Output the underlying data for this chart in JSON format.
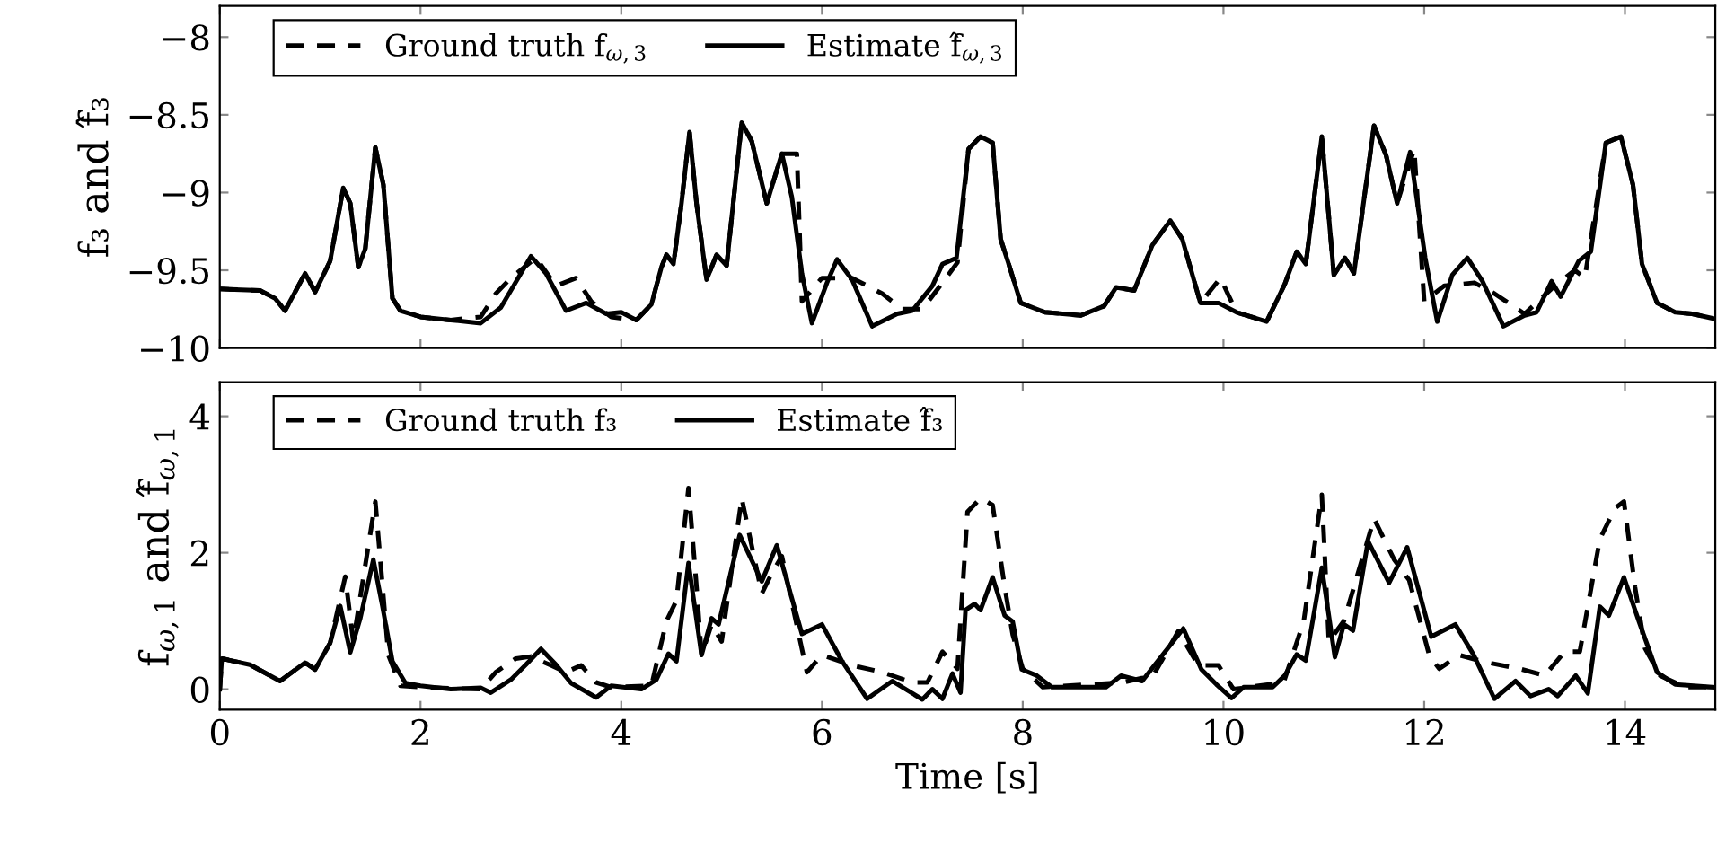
{
  "chart_data": [
    {
      "type": "line",
      "ylabel": "f₃ and f̂₃",
      "legend": "top left",
      "tick_labels": "y",
      "xlim": [
        0,
        14.9
      ],
      "ylim": [
        -10,
        -7.8
      ],
      "xticks": [
        {
          "value": 0,
          "label": null
        },
        {
          "value": 2,
          "label": null
        },
        {
          "value": 4,
          "label": null
        },
        {
          "value": 6,
          "label": null
        },
        {
          "value": 8,
          "label": null
        },
        {
          "value": 10,
          "label": null
        },
        {
          "value": 12,
          "label": null
        },
        {
          "value": 14,
          "label": null
        }
      ],
      "yticks": [
        {
          "value": -10,
          "label": "−10"
        },
        {
          "value": -9.5,
          "label": "−9.5"
        },
        {
          "value": -9,
          "label": "−9"
        },
        {
          "value": -8.5,
          "label": "−8.5"
        },
        {
          "value": -8,
          "label": "−8"
        }
      ],
      "series": [
        {
          "name": "Ground truth f$_{ω,3}$",
          "color": "#000000",
          "line_style": "dashed",
          "x": [
            0,
            0.4,
            0.55,
            0.65,
            0.85,
            0.95,
            1.1,
            1.23,
            1.3,
            1.38,
            1.45,
            1.55,
            1.63,
            1.72,
            1.8,
            2.0,
            2.3,
            2.6,
            2.75,
            2.9,
            3.15,
            3.35,
            3.55,
            3.7,
            3.9,
            4.15,
            4.3,
            4.4,
            4.45,
            4.52,
            4.6,
            4.68,
            4.75,
            4.85,
            4.95,
            5.05,
            5.2,
            5.3,
            5.45,
            5.6,
            5.75,
            5.8,
            6.0,
            6.3,
            6.6,
            6.8,
            7.0,
            7.2,
            7.35,
            7.46,
            7.58,
            7.7,
            7.78,
            7.86,
            7.98,
            8.22,
            8.58,
            8.81,
            8.93,
            9.11,
            9.29,
            9.47,
            9.59,
            9.77,
            9.97,
            10.13,
            10.43,
            10.61,
            10.73,
            10.82,
            10.98,
            11.1,
            11.21,
            11.3,
            11.5,
            11.62,
            11.73,
            11.9,
            12.0,
            12.2,
            12.5,
            12.7,
            13.0,
            13.3,
            13.5,
            13.6,
            13.81,
            13.96,
            14.08,
            14.17,
            14.32,
            14.5,
            14.67,
            14.88
          ],
          "values": [
            -9.62,
            -9.63,
            -9.68,
            -9.76,
            -9.52,
            -9.64,
            -9.44,
            -8.97,
            -9.07,
            -9.48,
            -9.36,
            -8.71,
            -8.95,
            -9.68,
            -9.76,
            -9.8,
            -9.82,
            -9.8,
            -9.65,
            -9.55,
            -9.42,
            -9.6,
            -9.55,
            -9.7,
            -9.8,
            -9.82,
            -9.72,
            -9.48,
            -9.4,
            -9.46,
            -9.07,
            -8.61,
            -9.07,
            -9.56,
            -9.4,
            -9.47,
            -8.55,
            -8.67,
            -9.07,
            -8.75,
            -8.75,
            -9.7,
            -9.55,
            -9.55,
            -9.65,
            -9.75,
            -9.75,
            -9.58,
            -9.45,
            -8.72,
            -8.64,
            -8.68,
            -9.3,
            -9.46,
            -9.71,
            -9.77,
            -9.79,
            -9.73,
            -9.61,
            -9.63,
            -9.34,
            -9.18,
            -9.3,
            -9.71,
            -9.55,
            -9.77,
            -9.83,
            -9.59,
            -9.38,
            -9.46,
            -8.64,
            -9.53,
            -9.42,
            -9.52,
            -8.57,
            -8.76,
            -9.07,
            -8.72,
            -9.7,
            -9.6,
            -9.58,
            -9.65,
            -9.78,
            -9.6,
            -9.5,
            -9.55,
            -8.68,
            -8.64,
            -8.95,
            -9.46,
            -9.71,
            -9.77,
            -9.78,
            -9.81
          ]
        },
        {
          "name": "Estimate f̂$_{ω,3}$",
          "color": "#000000",
          "line_style": "solid",
          "x": [
            0,
            0.4,
            0.55,
            0.65,
            0.85,
            0.95,
            1.1,
            1.23,
            1.3,
            1.38,
            1.45,
            1.55,
            1.63,
            1.72,
            1.8,
            2.0,
            2.3,
            2.6,
            2.8,
            3.0,
            3.1,
            3.25,
            3.45,
            3.65,
            3.85,
            4.0,
            4.15,
            4.3,
            4.4,
            4.45,
            4.52,
            4.6,
            4.68,
            4.75,
            4.85,
            4.95,
            5.05,
            5.2,
            5.3,
            5.45,
            5.6,
            5.7,
            5.8,
            5.9,
            6.05,
            6.15,
            6.3,
            6.5,
            6.75,
            6.9,
            7.0,
            7.1,
            7.2,
            7.34,
            7.46,
            7.58,
            7.7,
            7.78,
            7.86,
            7.98,
            8.22,
            8.58,
            8.81,
            8.93,
            9.11,
            9.29,
            9.47,
            9.59,
            9.77,
            9.95,
            10.13,
            10.43,
            10.61,
            10.73,
            10.82,
            10.98,
            11.1,
            11.21,
            11.3,
            11.5,
            11.62,
            11.73,
            11.86,
            12.01,
            12.13,
            12.28,
            12.43,
            12.58,
            12.79,
            13.0,
            13.12,
            13.27,
            13.36,
            13.54,
            13.66,
            13.81,
            13.96,
            14.08,
            14.17,
            14.32,
            14.5,
            14.67,
            14.88
          ],
          "values": [
            -9.62,
            -9.63,
            -9.68,
            -9.76,
            -9.52,
            -9.64,
            -9.44,
            -8.97,
            -9.07,
            -9.48,
            -9.36,
            -8.71,
            -8.95,
            -9.68,
            -9.76,
            -9.8,
            -9.82,
            -9.84,
            -9.74,
            -9.52,
            -9.41,
            -9.52,
            -9.76,
            -9.71,
            -9.78,
            -9.77,
            -9.82,
            -9.72,
            -9.48,
            -9.4,
            -9.46,
            -9.07,
            -8.61,
            -9.07,
            -9.56,
            -9.4,
            -9.47,
            -8.55,
            -8.67,
            -9.07,
            -8.75,
            -9.03,
            -9.52,
            -9.84,
            -9.58,
            -9.43,
            -9.56,
            -9.86,
            -9.78,
            -9.76,
            -9.68,
            -9.6,
            -9.46,
            -9.42,
            -8.72,
            -8.64,
            -8.68,
            -9.3,
            -9.46,
            -9.71,
            -9.77,
            -9.79,
            -9.73,
            -9.61,
            -9.63,
            -9.34,
            -9.18,
            -9.3,
            -9.71,
            -9.71,
            -9.77,
            -9.83,
            -9.59,
            -9.38,
            -9.46,
            -8.64,
            -9.53,
            -9.42,
            -9.52,
            -8.57,
            -8.76,
            -9.07,
            -8.74,
            -9.42,
            -9.83,
            -9.53,
            -9.42,
            -9.57,
            -9.86,
            -9.79,
            -9.77,
            -9.57,
            -9.67,
            -9.44,
            -9.38,
            -8.68,
            -8.64,
            -8.95,
            -9.46,
            -9.71,
            -9.77,
            -9.78,
            -9.81
          ]
        }
      ]
    },
    {
      "type": "line",
      "xlabel": "Time [s]",
      "ylabel": "f$_{ω,1}$ and f̂$_{ω,1}$",
      "legend": "top left",
      "xlim": [
        0,
        14.9
      ],
      "ylim": [
        -0.3,
        4.5
      ],
      "xticks": [
        0,
        2,
        4,
        6,
        8,
        10,
        12,
        14
      ],
      "yticks": [
        0,
        2,
        4
      ],
      "series": [
        {
          "name": "Ground truth f₃",
          "color": "#000000",
          "line_style": "dashed",
          "x": [
            0,
            0.02,
            0.3,
            0.6,
            0.85,
            0.95,
            1.1,
            1.25,
            1.33,
            1.55,
            1.68,
            1.8,
            2.0,
            2.6,
            2.75,
            2.95,
            3.1,
            3.3,
            3.45,
            3.6,
            3.75,
            3.9,
            4.3,
            4.45,
            4.55,
            4.67,
            4.75,
            4.8,
            4.9,
            5.0,
            5.2,
            5.4,
            5.5,
            5.6,
            5.85,
            6.0,
            6.3,
            6.6,
            6.9,
            7.05,
            7.2,
            7.35,
            7.45,
            7.58,
            7.7,
            7.82,
            7.9,
            8.0,
            8.2,
            9.0,
            9.3,
            9.55,
            9.75,
            9.95,
            10.1,
            10.6,
            10.8,
            10.98,
            11.05,
            11.2,
            11.5,
            11.7,
            11.85,
            12.05,
            12.15,
            12.35,
            12.6,
            12.95,
            13.2,
            13.4,
            13.55,
            13.75,
            13.9,
            13.99,
            14.1,
            14.2,
            14.35,
            14.6,
            14.88
          ],
          "values": [
            0.0,
            0.45,
            0.36,
            0.12,
            0.39,
            0.29,
            0.68,
            1.65,
            0.7,
            2.75,
            0.5,
            0.05,
            0.03,
            0.0,
            0.25,
            0.45,
            0.48,
            0.35,
            0.25,
            0.35,
            0.1,
            0.03,
            0.05,
            1.0,
            1.3,
            2.95,
            1.5,
            0.5,
            0.95,
            0.7,
            2.8,
            1.4,
            1.7,
            1.95,
            0.25,
            0.5,
            0.35,
            0.25,
            0.1,
            0.1,
            0.55,
            0.3,
            2.6,
            2.8,
            2.7,
            1.5,
            0.8,
            0.3,
            0.03,
            0.1,
            0.2,
            0.85,
            0.35,
            0.35,
            0.0,
            0.1,
            1.0,
            2.85,
            0.7,
            1.0,
            2.5,
            1.9,
            1.6,
            0.5,
            0.3,
            0.5,
            0.4,
            0.3,
            0.2,
            0.55,
            0.55,
            2.2,
            2.65,
            2.75,
            1.5,
            0.6,
            0.2,
            0.03,
            0.03
          ]
        },
        {
          "name": "Estimate f̂₃",
          "color": "#000000",
          "line_style": "solid",
          "x": [
            0,
            0.02,
            0.3,
            0.6,
            0.85,
            0.95,
            1.1,
            1.2,
            1.3,
            1.4,
            1.53,
            1.62,
            1.72,
            1.85,
            2.0,
            2.3,
            2.6,
            2.7,
            2.9,
            3.05,
            3.2,
            3.35,
            3.5,
            3.75,
            3.9,
            4.2,
            4.35,
            4.47,
            4.55,
            4.67,
            4.8,
            4.9,
            4.97,
            5.18,
            5.4,
            5.55,
            5.8,
            6.0,
            6.2,
            6.45,
            6.7,
            7.0,
            7.1,
            7.2,
            7.3,
            7.38,
            7.43,
            7.52,
            7.58,
            7.7,
            7.82,
            7.9,
            7.99,
            8.14,
            8.29,
            8.83,
            8.98,
            9.19,
            9.6,
            9.78,
            9.93,
            10.08,
            10.2,
            10.49,
            10.61,
            10.73,
            10.82,
            10.98,
            11.11,
            11.2,
            11.29,
            11.44,
            11.65,
            11.83,
            12.07,
            12.31,
            12.49,
            12.7,
            12.91,
            13.06,
            13.24,
            13.33,
            13.51,
            13.63,
            13.75,
            13.84,
            13.99,
            14.14,
            14.32,
            14.5,
            14.88
          ],
          "values": [
            0.0,
            0.45,
            0.36,
            0.12,
            0.39,
            0.29,
            0.68,
            1.22,
            0.54,
            1.04,
            1.9,
            1.22,
            0.41,
            0.09,
            0.05,
            0.0,
            0.02,
            -0.05,
            0.14,
            0.36,
            0.59,
            0.36,
            0.09,
            -0.12,
            0.05,
            0.0,
            0.14,
            0.52,
            0.41,
            1.85,
            0.5,
            1.04,
            0.95,
            2.26,
            1.58,
            2.11,
            0.81,
            0.95,
            0.41,
            -0.14,
            0.12,
            -0.15,
            0.0,
            -0.14,
            0.23,
            -0.05,
            1.16,
            1.25,
            1.16,
            1.64,
            1.08,
            0.99,
            0.29,
            0.2,
            0.03,
            0.03,
            0.2,
            0.12,
            0.89,
            0.29,
            0.07,
            -0.13,
            0.03,
            0.03,
            0.2,
            0.51,
            0.42,
            1.78,
            0.47,
            0.95,
            0.86,
            2.17,
            1.56,
            2.08,
            0.77,
            0.95,
            0.51,
            -0.14,
            0.12,
            -0.1,
            0.0,
            -0.1,
            0.2,
            -0.06,
            1.21,
            1.08,
            1.64,
            0.99,
            0.25,
            0.07,
            0.03
          ]
        }
      ]
    }
  ]
}
